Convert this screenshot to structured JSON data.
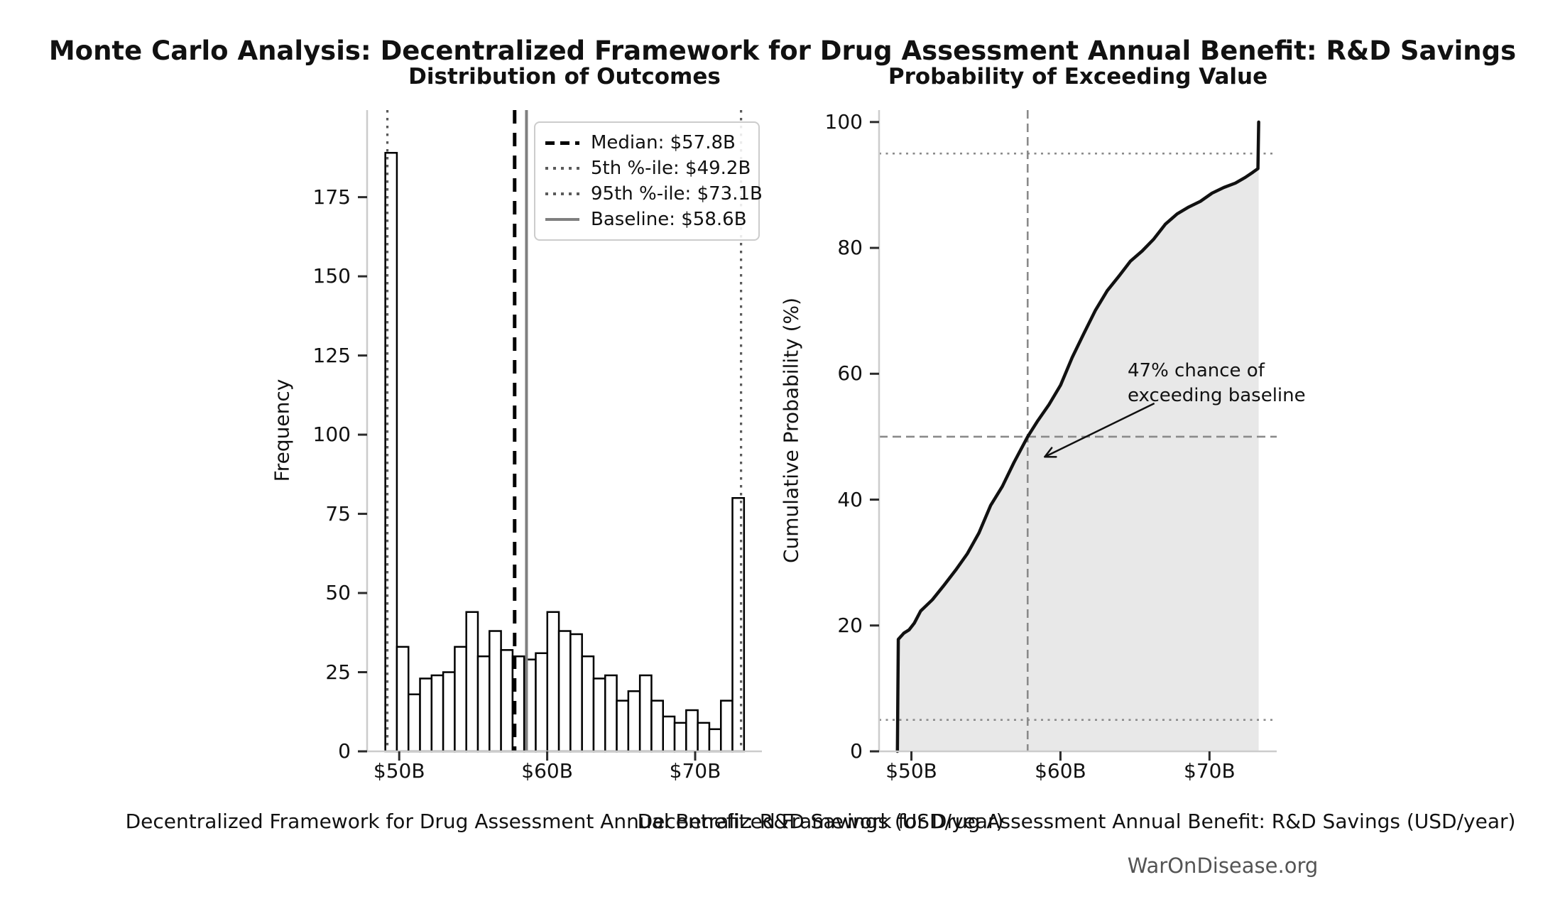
{
  "header": {
    "title": "Monte Carlo Analysis: Decentralized Framework for Drug Assessment Annual Benefit: R&D Savings",
    "watermark": "WarOnDisease.org"
  },
  "colors": {
    "curve": "#111111",
    "cdf_fill": "#e8e8e8",
    "bar_fill": "#ffffff",
    "bar_edge": "#000000",
    "spine": "#cccccc",
    "tick": "#2b2b2b",
    "median_line": "#000000",
    "percentile_line": "#5a5a5a",
    "baseline_line": "#7f7f7f",
    "crosshair": "#8a8a8a",
    "annotation": "#111111",
    "watermark": "#545454"
  },
  "chart_data": [
    {
      "type": "bar",
      "title": "Distribution of Outcomes",
      "xlabel": "Decentralized Framework for Drug Assessment Annual Benefit: R&D Savings (USD/year)",
      "ylabel": "Frequency",
      "xlim": [
        47.83,
        74.51
      ],
      "ylim": [
        0,
        202.5
      ],
      "grid": false,
      "bin_start": 49.06,
      "bin_width": 0.782,
      "counts": [
        189,
        33,
        18,
        23,
        24,
        25,
        33,
        44,
        30,
        38,
        32,
        30,
        29,
        31,
        44,
        38,
        37,
        30,
        23,
        24,
        16,
        19,
        24,
        16,
        11,
        9,
        13,
        9,
        7,
        16,
        80
      ],
      "x_ticks": [
        {
          "value": 50,
          "label": "$50B"
        },
        {
          "value": 60,
          "label": "$60B"
        },
        {
          "value": 70,
          "label": "$70B"
        }
      ],
      "y_ticks": [
        {
          "value": 0,
          "label": "0"
        },
        {
          "value": 25,
          "label": "25"
        },
        {
          "value": 50,
          "label": "50"
        },
        {
          "value": 75,
          "label": "75"
        },
        {
          "value": 100,
          "label": "100"
        },
        {
          "value": 125,
          "label": "125"
        },
        {
          "value": 150,
          "label": "150"
        },
        {
          "value": 175,
          "label": "175"
        }
      ],
      "vlines": [
        {
          "name": "median",
          "value": 57.8,
          "style": "dashed-black"
        },
        {
          "name": "percentile-5",
          "value": 49.2,
          "style": "dotted-gray"
        },
        {
          "name": "percentile-95",
          "value": 73.1,
          "style": "dotted-gray"
        },
        {
          "name": "baseline",
          "value": 58.6,
          "style": "solid-gray"
        }
      ],
      "legend": [
        {
          "label": "Median: $57.8B",
          "style": "dashed-black"
        },
        {
          "label": "5th %-ile: $49.2B",
          "style": "dotted-gray"
        },
        {
          "label": "95th %-ile: $73.1B",
          "style": "dotted-gray"
        },
        {
          "label": "Baseline: $58.6B",
          "style": "solid-gray"
        }
      ]
    },
    {
      "type": "line",
      "title": "Probability of Exceeding Value",
      "xlabel": "Decentralized Framework for Drug Assessment Annual Benefit: R&D Savings (USD/year)",
      "ylabel": "Cumulative Probability (%)",
      "xlim": [
        47.83,
        74.51
      ],
      "ylim": [
        0,
        101.9
      ],
      "grid": false,
      "fill_under_curve": true,
      "curve": [
        [
          49.06,
          0
        ],
        [
          49.12,
          17.8
        ],
        [
          49.5,
          18.8
        ],
        [
          49.84,
          19.3
        ],
        [
          50.2,
          20.4
        ],
        [
          50.62,
          22.3
        ],
        [
          51.41,
          24.1
        ],
        [
          52.19,
          26.4
        ],
        [
          52.97,
          28.8
        ],
        [
          53.75,
          31.4
        ],
        [
          54.53,
          34.7
        ],
        [
          55.32,
          39.1
        ],
        [
          56.1,
          42.1
        ],
        [
          56.88,
          45.9
        ],
        [
          57.8,
          50.0
        ],
        [
          58.44,
          52.4
        ],
        [
          59.23,
          55.1
        ],
        [
          60.01,
          58.2
        ],
        [
          60.79,
          62.6
        ],
        [
          61.57,
          66.4
        ],
        [
          62.35,
          70.1
        ],
        [
          63.14,
          73.2
        ],
        [
          63.92,
          75.5
        ],
        [
          64.7,
          77.9
        ],
        [
          65.48,
          79.5
        ],
        [
          66.26,
          81.4
        ],
        [
          67.05,
          83.8
        ],
        [
          67.83,
          85.4
        ],
        [
          68.61,
          86.5
        ],
        [
          69.39,
          87.4
        ],
        [
          70.17,
          88.7
        ],
        [
          70.96,
          89.6
        ],
        [
          71.74,
          90.3
        ],
        [
          72.4,
          91.2
        ],
        [
          72.9,
          92.0
        ],
        [
          73.25,
          92.6
        ],
        [
          73.3,
          100
        ]
      ],
      "x_ticks": [
        {
          "value": 50,
          "label": "$50B"
        },
        {
          "value": 60,
          "label": "$60B"
        },
        {
          "value": 70,
          "label": "$70B"
        }
      ],
      "y_ticks": [
        {
          "value": 0,
          "label": "0"
        },
        {
          "value": 20,
          "label": "20"
        },
        {
          "value": 40,
          "label": "40"
        },
        {
          "value": 60,
          "label": "60"
        },
        {
          "value": 80,
          "label": "80"
        },
        {
          "value": 100,
          "label": "100"
        }
      ],
      "hlines": [
        {
          "name": "percentile-5-line",
          "value": 5,
          "style": "dotted-thin"
        },
        {
          "name": "fifty-percent-line",
          "value": 50,
          "style": "dashed-gray"
        },
        {
          "name": "percentile-95-line",
          "value": 95,
          "style": "dotted-thin"
        }
      ],
      "vlines": [
        {
          "name": "median-line",
          "value": 57.8,
          "style": "dashed-gray"
        }
      ],
      "annotation": {
        "line1": "47% chance of",
        "line2": "exceeding baseline",
        "arrow_tail": [
          66.3,
          55.3
        ],
        "arrow_tip": [
          58.95,
          46.8
        ]
      }
    }
  ]
}
